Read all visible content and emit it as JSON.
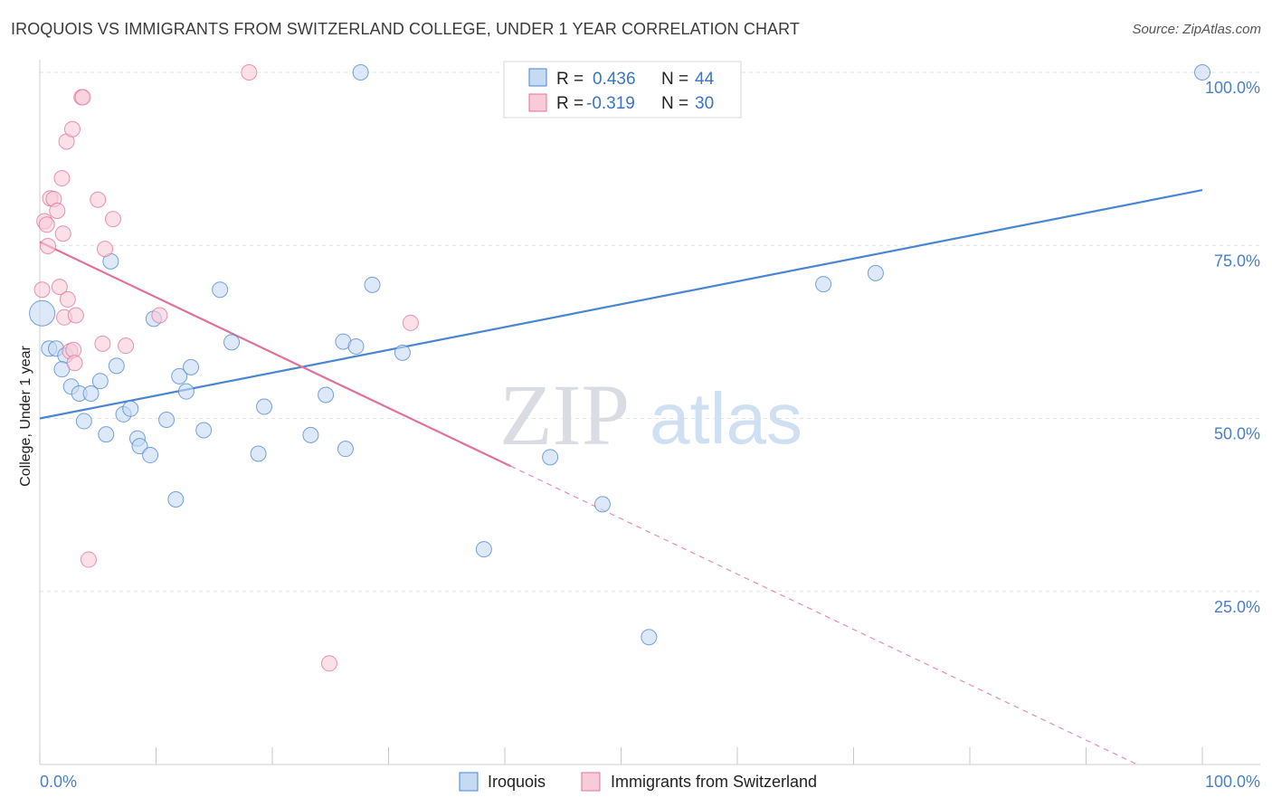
{
  "title": "IROQUOIS VS IMMIGRANTS FROM SWITZERLAND COLLEGE, UNDER 1 YEAR CORRELATION CHART",
  "source": "Source: ZipAtlas.com",
  "watermark": {
    "zip": "ZIP",
    "atlas": "atlas"
  },
  "chart_data": {
    "type": "scatter",
    "ylabel": "College, Under 1 year",
    "xlabel": "",
    "x_tick_labels": [
      "0.0%",
      "100.0%"
    ],
    "y_tick_labels": [
      "100.0%",
      "75.0%",
      "50.0%",
      "25.0%"
    ],
    "y_tick_values": [
      100,
      75,
      50,
      25
    ],
    "xlim": [
      0,
      100
    ],
    "ylim": [
      0,
      100
    ],
    "grid": true,
    "legend_position": "top-center",
    "colors": {
      "iroquois": "#4a86d0",
      "swiss": "#e0729a",
      "iroquois_fill": "#c6daf4",
      "swiss_fill": "#f8cbd9"
    },
    "legend": [
      {
        "r_label": "R =",
        "r_value": "0.436",
        "n_label": "N =",
        "n_value": "44"
      },
      {
        "r_label": "R =",
        "r_value": "-0.319",
        "n_label": "N =",
        "n_value": "30"
      }
    ],
    "series": [
      {
        "name": "Iroquois",
        "points": [
          [
            0.2,
            65.2
          ],
          [
            0.8,
            60.1
          ],
          [
            1.4,
            60.1
          ],
          [
            2.2,
            59.1
          ],
          [
            1.9,
            57.1
          ],
          [
            2.7,
            54.6
          ],
          [
            3.4,
            53.6
          ],
          [
            4.4,
            53.6
          ],
          [
            3.8,
            49.6
          ],
          [
            5.2,
            55.4
          ],
          [
            5.7,
            47.7
          ],
          [
            6.1,
            72.7
          ],
          [
            6.6,
            57.6
          ],
          [
            7.2,
            50.6
          ],
          [
            7.8,
            51.4
          ],
          [
            8.4,
            47.1
          ],
          [
            8.6,
            46.0
          ],
          [
            9.5,
            44.7
          ],
          [
            9.8,
            64.4
          ],
          [
            10.9,
            49.8
          ],
          [
            11.7,
            38.3
          ],
          [
            12.0,
            56.1
          ],
          [
            12.6,
            53.9
          ],
          [
            13.0,
            57.4
          ],
          [
            14.1,
            48.3
          ],
          [
            15.5,
            68.6
          ],
          [
            16.5,
            61.0
          ],
          [
            18.8,
            44.9
          ],
          [
            19.3,
            51.7
          ],
          [
            23.3,
            47.6
          ],
          [
            24.6,
            53.4
          ],
          [
            26.1,
            61.1
          ],
          [
            26.3,
            45.6
          ],
          [
            27.2,
            60.4
          ],
          [
            27.6,
            100.0
          ],
          [
            28.6,
            69.3
          ],
          [
            31.2,
            59.5
          ],
          [
            38.2,
            31.1
          ],
          [
            43.9,
            44.4
          ],
          [
            48.4,
            37.6
          ],
          [
            52.4,
            18.4
          ],
          [
            67.4,
            69.4
          ],
          [
            71.9,
            71.0
          ],
          [
            100.0,
            100.0
          ]
        ]
      },
      {
        "name": "Immigrants from Switzerland",
        "points": [
          [
            0.2,
            68.6
          ],
          [
            0.4,
            78.5
          ],
          [
            0.6,
            78.0
          ],
          [
            0.7,
            74.9
          ],
          [
            0.9,
            81.8
          ],
          [
            1.2,
            81.7
          ],
          [
            1.5,
            80.0
          ],
          [
            1.7,
            69.0
          ],
          [
            1.9,
            84.7
          ],
          [
            2.0,
            76.7
          ],
          [
            2.1,
            64.6
          ],
          [
            2.3,
            90.0
          ],
          [
            2.4,
            67.2
          ],
          [
            2.6,
            59.7
          ],
          [
            2.8,
            91.8
          ],
          [
            2.9,
            59.9
          ],
          [
            3.0,
            58.0
          ],
          [
            3.1,
            64.9
          ],
          [
            3.6,
            96.4
          ],
          [
            3.7,
            96.4
          ],
          [
            4.2,
            29.6
          ],
          [
            5.0,
            81.6
          ],
          [
            5.4,
            60.8
          ],
          [
            5.6,
            74.5
          ],
          [
            6.3,
            78.8
          ],
          [
            7.4,
            60.5
          ],
          [
            10.3,
            64.9
          ],
          [
            18.0,
            100.0
          ],
          [
            24.9,
            14.6
          ],
          [
            31.9,
            63.8
          ]
        ]
      }
    ],
    "trendlines": [
      {
        "name": "Iroquois",
        "x": [
          0,
          100
        ],
        "y": [
          50.0,
          83.0
        ],
        "solid_until": 100
      },
      {
        "name": "Immigrants from Switzerland",
        "x": [
          0,
          94.4
        ],
        "y": [
          75.5,
          0.0
        ],
        "solid_until": 40.5
      }
    ]
  }
}
